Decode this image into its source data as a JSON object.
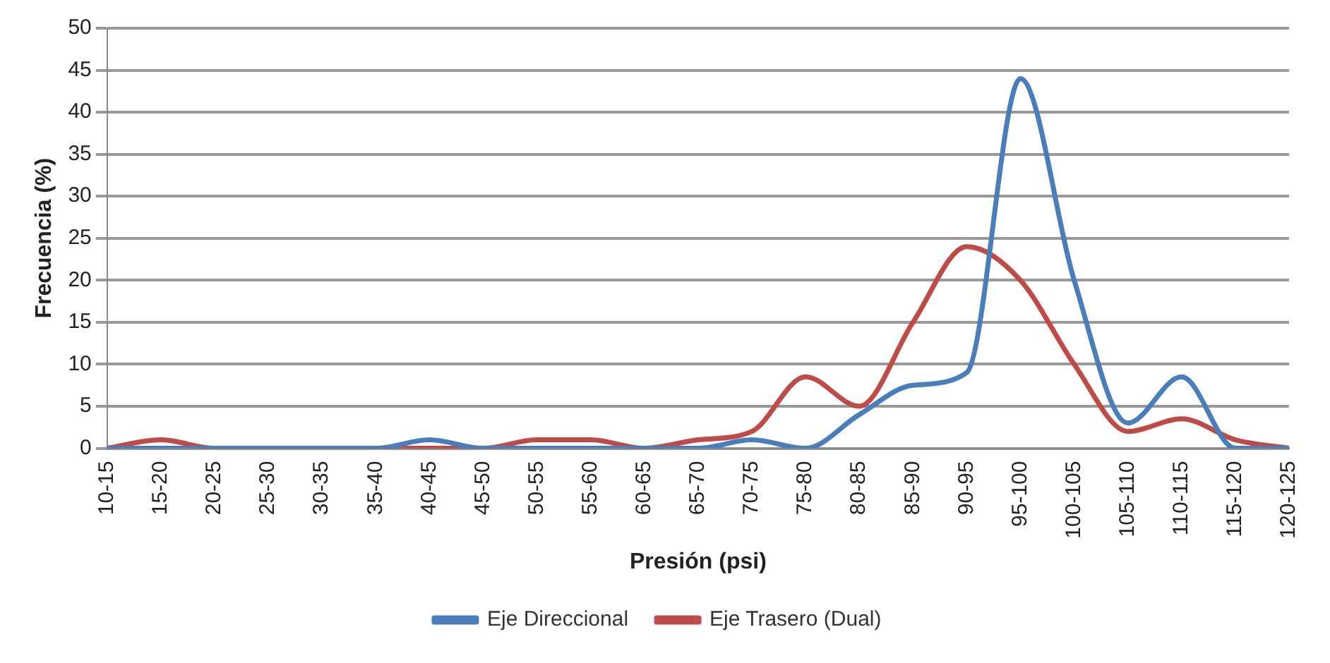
{
  "chart_data": {
    "type": "line",
    "xlabel": "Presión (psi)",
    "ylabel": "Frecuencia (%)",
    "categories": [
      "10-15",
      "15-20",
      "20-25",
      "25-30",
      "30-35",
      "35-40",
      "40-45",
      "45-50",
      "50-55",
      "55-60",
      "60-65",
      "65-70",
      "70-75",
      "75-80",
      "80-85",
      "85-90",
      "90-95",
      "95-100",
      "100-105",
      "105-110",
      "110-115",
      "115-120",
      "120-125"
    ],
    "series": [
      {
        "name": "Eje Direccional",
        "color": "#4a7ebb",
        "values": [
          0,
          0,
          0,
          0,
          0,
          0,
          1,
          0,
          0,
          0,
          0,
          0,
          1,
          0,
          4,
          7.5,
          9,
          44,
          20,
          3,
          8.5,
          0,
          0
        ]
      },
      {
        "name": "Eje Trasero (Dual)",
        "color": "#be4b48",
        "values": [
          0,
          1,
          0,
          0,
          0,
          0,
          0,
          0,
          1,
          1,
          0,
          1,
          2,
          8.5,
          5,
          15,
          24,
          20,
          10,
          2,
          3.5,
          1,
          0
        ]
      }
    ],
    "ylim": [
      0,
      50
    ],
    "yticks": [
      0,
      5,
      10,
      15,
      20,
      25,
      30,
      35,
      40,
      45,
      50
    ],
    "grid": "y",
    "legend": "bottom",
    "marker": "none",
    "line_style": "solid"
  }
}
